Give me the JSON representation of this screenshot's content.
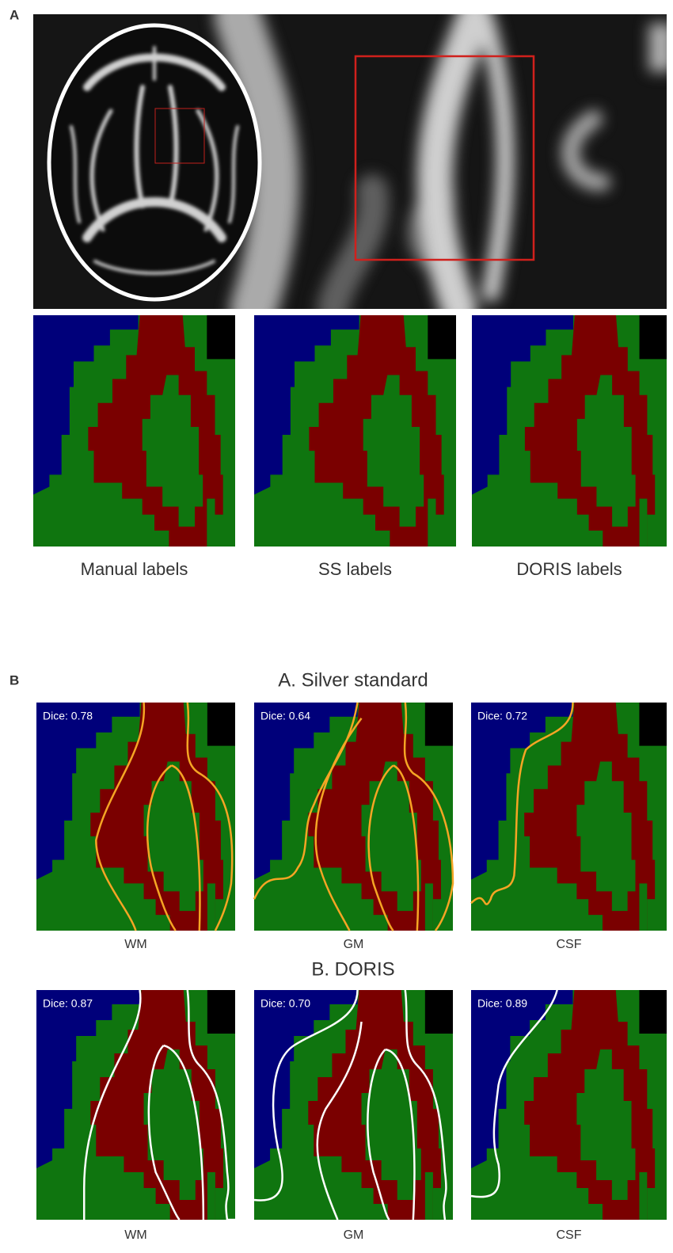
{
  "panel_a": {
    "label": "A",
    "maps": [
      {
        "caption": "Manual labels"
      },
      {
        "caption": "SS labels"
      },
      {
        "caption": "DORIS labels"
      }
    ]
  },
  "panel_b": {
    "label": "B",
    "rows": [
      {
        "title": "A. Silver standard",
        "cells": [
          {
            "dice": "Dice: 0.78",
            "caption": "WM"
          },
          {
            "dice": "Dice: 0.64",
            "caption": "GM"
          },
          {
            "dice": "Dice: 0.72",
            "caption": "CSF"
          }
        ]
      },
      {
        "title": "B. DORIS",
        "cells": [
          {
            "dice": "Dice: 0.87",
            "caption": "WM"
          },
          {
            "dice": "Dice: 0.70",
            "caption": "GM"
          },
          {
            "dice": "Dice: 0.89",
            "caption": "CSF"
          }
        ]
      }
    ]
  }
}
